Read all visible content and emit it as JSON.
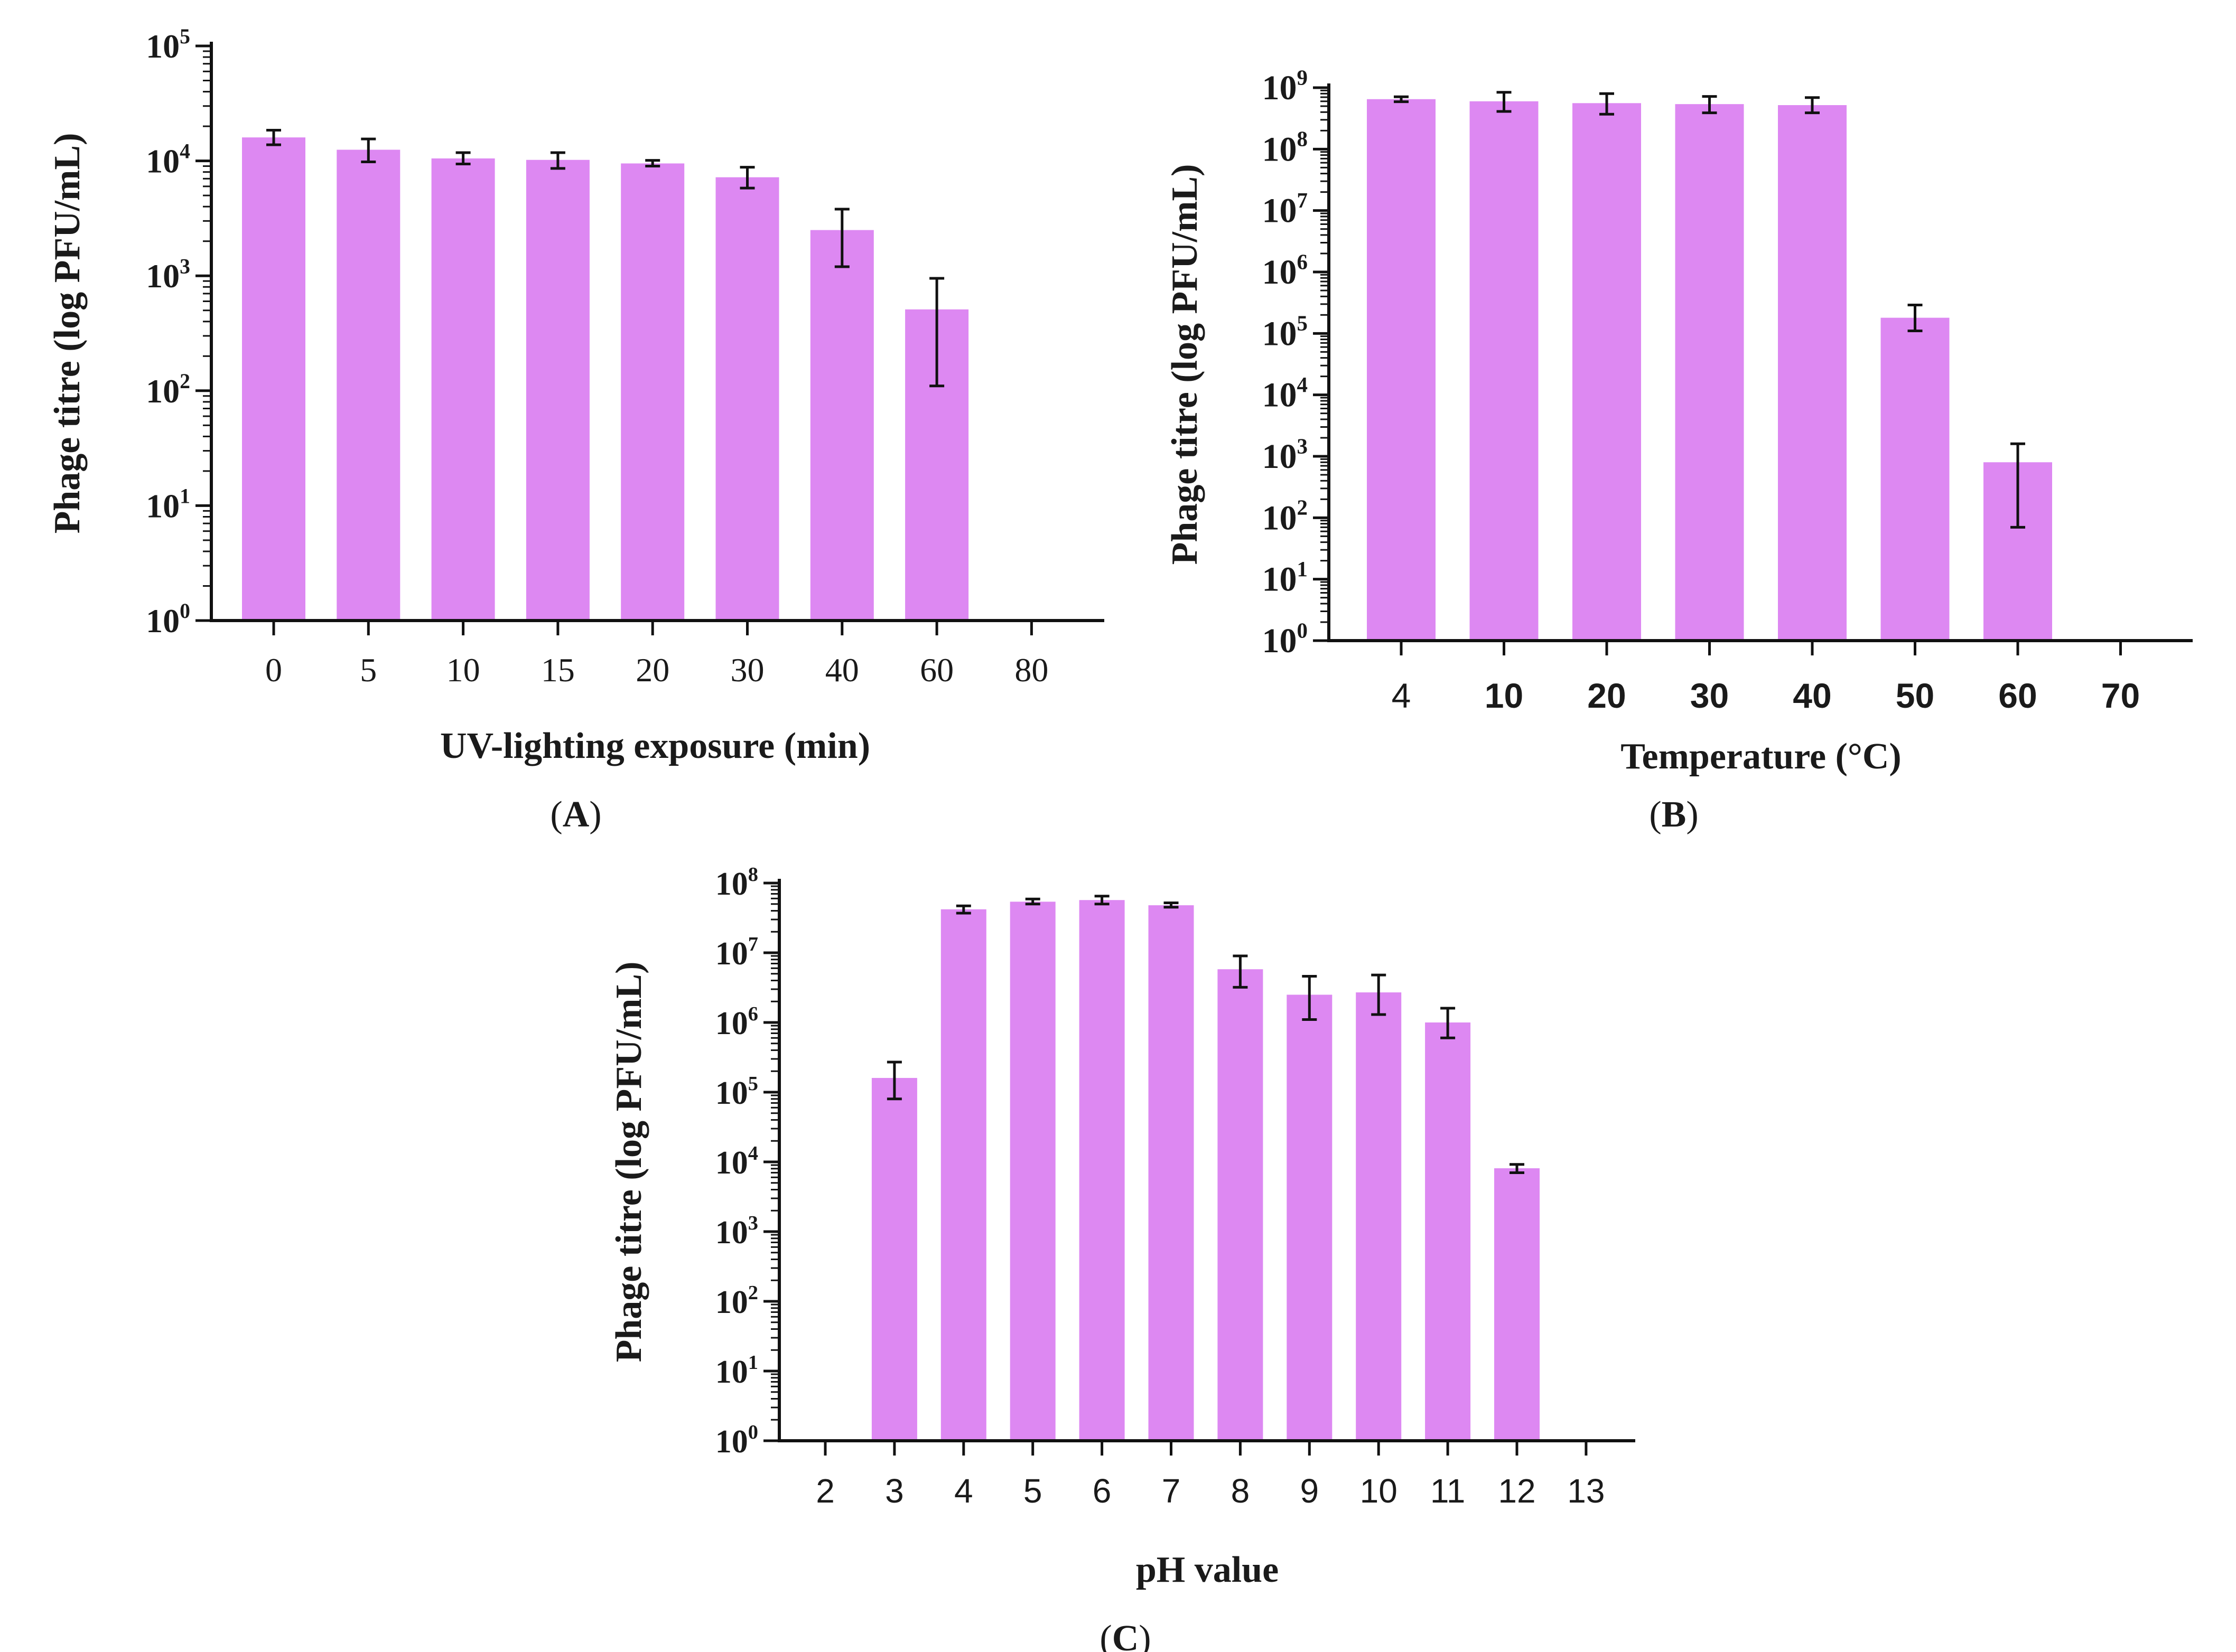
{
  "colors": {
    "bar": "#dd88f2",
    "axis": "#111111",
    "error": "#111111",
    "text": "#1a1a1a"
  },
  "chart_data": [
    {
      "panel": "A",
      "panel_label": "(A)",
      "type": "bar",
      "yscale": "log",
      "ylim": [
        1,
        100000
      ],
      "ylabel": "Phage titre (log PFU/mL)",
      "xlabel": "UV-lighting exposure (min)",
      "categories": [
        "0",
        "5",
        "10",
        "15",
        "20",
        "30",
        "40",
        "60",
        "80"
      ],
      "values": [
        16000,
        12500,
        10500,
        10200,
        9500,
        7200,
        2500,
        510,
        null
      ],
      "error_low": [
        13800,
        9800,
        9400,
        8600,
        9000,
        5800,
        1200,
        110,
        null
      ],
      "error_high": [
        18500,
        15500,
        11800,
        11800,
        10100,
        8800,
        3800,
        950,
        null
      ],
      "yticks": [
        {
          "base": "10",
          "exp": "0"
        },
        {
          "base": "10",
          "exp": "1"
        },
        {
          "base": "10",
          "exp": "2"
        },
        {
          "base": "10",
          "exp": "3"
        },
        {
          "base": "10",
          "exp": "4"
        },
        {
          "base": "10",
          "exp": "5"
        }
      ]
    },
    {
      "panel": "B",
      "panel_label": "(B)",
      "type": "bar",
      "yscale": "log",
      "ylim": [
        1,
        1000000000
      ],
      "ylabel": "Phage titre (log PFU/mL)",
      "xlabel": "Temperature (°C)",
      "categories": [
        "4",
        "10",
        "20",
        "30",
        "40",
        "50",
        "60",
        "70"
      ],
      "values": [
        650000000,
        600000000,
        560000000,
        540000000,
        520000000,
        180000,
        800,
        null
      ],
      "error_low": [
        590000000,
        410000000,
        370000000,
        390000000,
        390000000,
        110000,
        70,
        null
      ],
      "error_high": [
        710000000,
        840000000,
        800000000,
        720000000,
        690000000,
        290000,
        1600,
        null
      ],
      "yticks": [
        {
          "base": "10",
          "exp": "0"
        },
        {
          "base": "10",
          "exp": "1"
        },
        {
          "base": "10",
          "exp": "2"
        },
        {
          "base": "10",
          "exp": "3"
        },
        {
          "base": "10",
          "exp": "4"
        },
        {
          "base": "10",
          "exp": "5"
        },
        {
          "base": "10",
          "exp": "6"
        },
        {
          "base": "10",
          "exp": "7"
        },
        {
          "base": "10",
          "exp": "8"
        },
        {
          "base": "10",
          "exp": "9"
        }
      ]
    },
    {
      "panel": "C",
      "panel_label": "(C)",
      "type": "bar",
      "yscale": "log",
      "ylim": [
        1,
        100000000
      ],
      "ylabel": "Phage titre (log PFU/mL)",
      "xlabel": "pH value",
      "categories": [
        "2",
        "3",
        "4",
        "5",
        "6",
        "7",
        "8",
        "9",
        "10",
        "11",
        "12",
        "13"
      ],
      "values": [
        null,
        160000,
        42000000,
        54000000,
        57000000,
        48000000,
        5800000,
        2500000,
        2700000,
        1000000,
        8100,
        null
      ],
      "error_low": [
        null,
        80000,
        37000000,
        50000000,
        50000000,
        45000000,
        3200000,
        1100000,
        1300000,
        600000,
        7000,
        null
      ],
      "error_high": [
        null,
        270000,
        47000000,
        59000000,
        65000000,
        52000000,
        9000000,
        4600000,
        4800000,
        1600000,
        9200,
        null
      ],
      "yticks": [
        {
          "base": "10",
          "exp": "0"
        },
        {
          "base": "10",
          "exp": "1"
        },
        {
          "base": "10",
          "exp": "2"
        },
        {
          "base": "10",
          "exp": "3"
        },
        {
          "base": "10",
          "exp": "4"
        },
        {
          "base": "10",
          "exp": "5"
        },
        {
          "base": "10",
          "exp": "6"
        },
        {
          "base": "10",
          "exp": "7"
        },
        {
          "base": "10",
          "exp": "8"
        }
      ]
    }
  ]
}
